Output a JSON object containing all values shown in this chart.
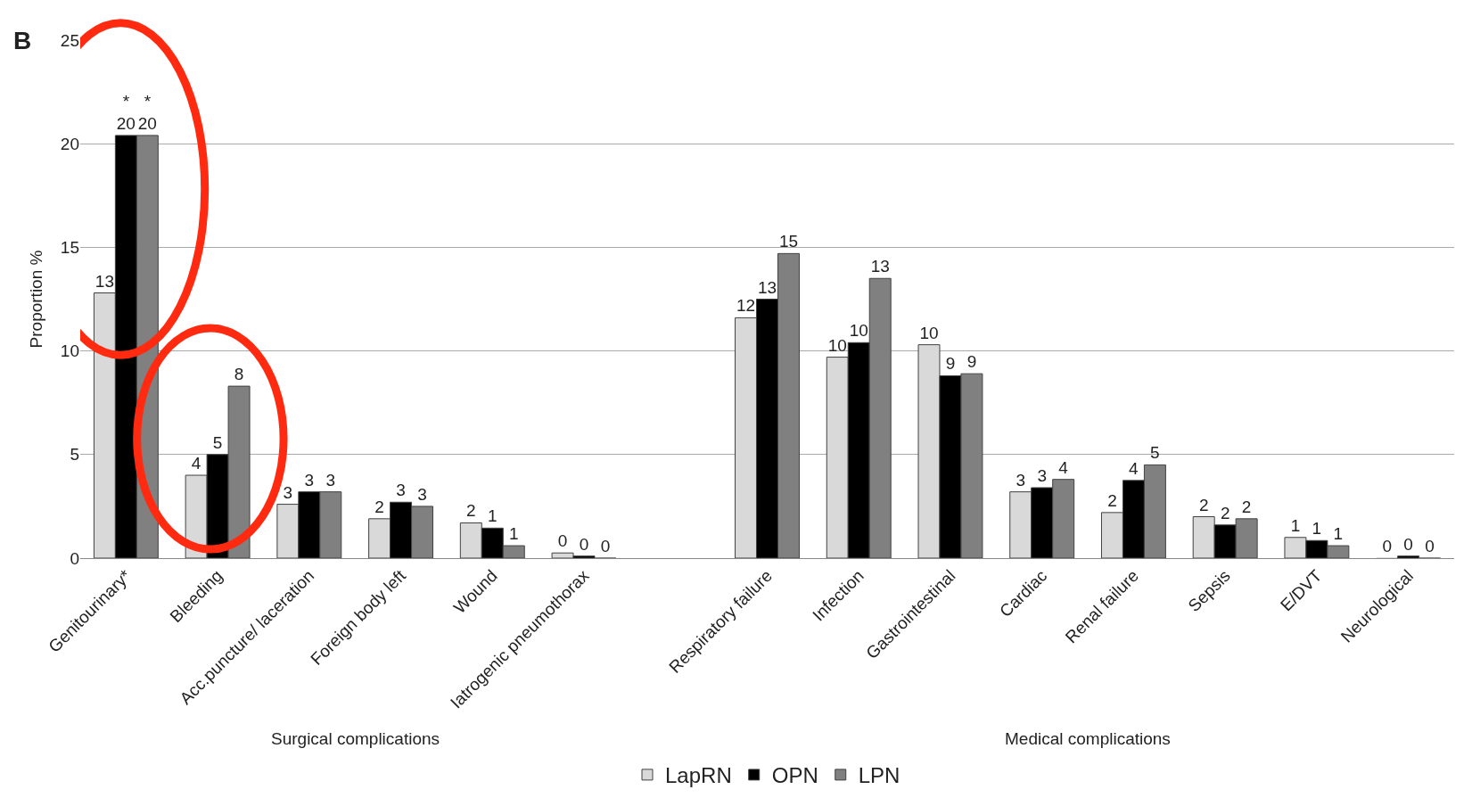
{
  "chart_data": {
    "type": "bar",
    "title": "B",
    "ylabel": "Proportion %",
    "categories": [
      "Genitourinary*",
      "Bleeding",
      "Acc.puncture/ laceration",
      "Foreign body left",
      "Wound",
      "Iatrogenic pneumothorax",
      null,
      "Respiratory failure",
      "Infection",
      "Gastrointestinal",
      "Cardiac",
      "Renal failure",
      "Sepsis",
      "E/DVT",
      "Neurological"
    ],
    "series": [
      {
        "name": "LapRN",
        "color": "#d9d9d9",
        "values": [
          12.8,
          4.0,
          2.6,
          1.9,
          1.7,
          0.25,
          null,
          11.6,
          9.7,
          10.3,
          3.2,
          2.2,
          2.0,
          1.0,
          0
        ],
        "value_labels": [
          "13",
          "4",
          "3",
          "2",
          "2",
          "0",
          null,
          "12",
          "10",
          "10",
          "3",
          "2",
          "2",
          "1",
          "0"
        ]
      },
      {
        "name": "OPN",
        "color": "#000000",
        "values": [
          20.4,
          5.0,
          3.2,
          2.7,
          1.45,
          0.1,
          null,
          12.5,
          10.4,
          8.8,
          3.4,
          3.75,
          1.6,
          0.85,
          0.1
        ],
        "value_labels": [
          "*\n20",
          "5",
          "3",
          "3",
          "1",
          "0",
          null,
          "13",
          "10",
          "9",
          "3",
          "4",
          "2",
          "1",
          "0"
        ]
      },
      {
        "name": "LPN",
        "color": "#808080",
        "values": [
          20.4,
          8.3,
          3.2,
          2.5,
          0.6,
          0,
          null,
          14.7,
          13.5,
          8.9,
          3.8,
          4.5,
          1.9,
          0.6,
          0
        ],
        "value_labels": [
          "*\n20",
          "8",
          "3",
          "3",
          "1",
          "0",
          null,
          "15",
          "13",
          "9",
          "4",
          "5",
          "2",
          "1",
          "0"
        ]
      }
    ],
    "ylim": [
      0,
      25
    ],
    "yticks": [
      0,
      5,
      10,
      15,
      20,
      25
    ],
    "grid": "y",
    "legend": "bottom",
    "annotations": [
      "Surgical complications",
      "Medical complications"
    ]
  }
}
